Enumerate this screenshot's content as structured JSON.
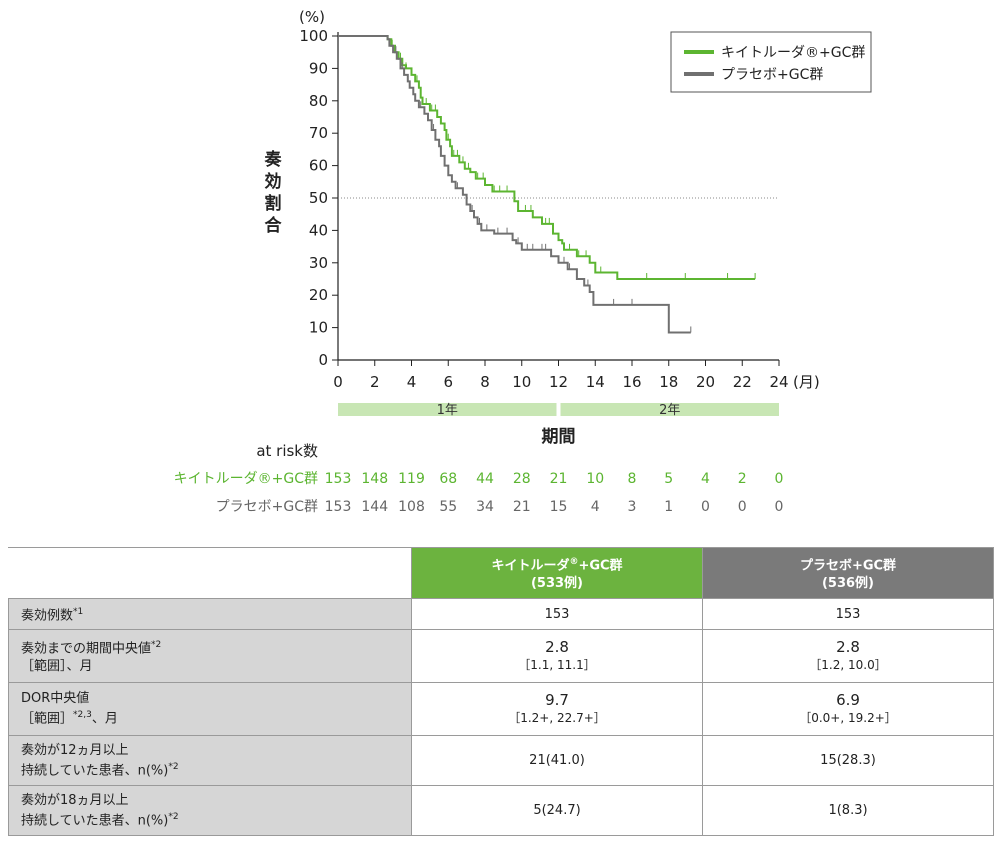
{
  "chart_data": {
    "type": "line",
    "subtype": "kaplan-meier",
    "y_unit": "(%)",
    "ylabel": "奏効割合",
    "xlabel": "期間",
    "x_unit": "(月)",
    "xlim": [
      0,
      24
    ],
    "ylim": [
      0,
      100
    ],
    "x_ticks": [
      0,
      2,
      4,
      6,
      8,
      10,
      12,
      14,
      16,
      18,
      20,
      22,
      24
    ],
    "y_ticks": [
      0,
      10,
      20,
      30,
      40,
      50,
      60,
      70,
      80,
      90,
      100
    ],
    "reference_line_y": 50,
    "legend_position": "top-right",
    "year_bands": [
      {
        "label": "1年",
        "from": 0,
        "to": 12
      },
      {
        "label": "2年",
        "from": 12,
        "to": 24
      }
    ],
    "series": [
      {
        "name": "キイトルーダ®+GC群",
        "color": "#5cb531",
        "points": [
          [
            0,
            100
          ],
          [
            2.7,
            100
          ],
          [
            2.7,
            99
          ],
          [
            2.9,
            99
          ],
          [
            2.9,
            97
          ],
          [
            3.1,
            97
          ],
          [
            3.1,
            95
          ],
          [
            3.3,
            95
          ],
          [
            3.3,
            93
          ],
          [
            3.5,
            93
          ],
          [
            3.5,
            91
          ],
          [
            3.7,
            91
          ],
          [
            3.7,
            90
          ],
          [
            4.0,
            90
          ],
          [
            4.0,
            88
          ],
          [
            4.2,
            88
          ],
          [
            4.2,
            86
          ],
          [
            4.4,
            86
          ],
          [
            4.4,
            84
          ],
          [
            4.5,
            84
          ],
          [
            4.5,
            81
          ],
          [
            4.6,
            81
          ],
          [
            4.6,
            79
          ],
          [
            5.0,
            79
          ],
          [
            5.0,
            77
          ],
          [
            5.4,
            77
          ],
          [
            5.4,
            75
          ],
          [
            5.6,
            75
          ],
          [
            5.6,
            73
          ],
          [
            5.8,
            73
          ],
          [
            5.8,
            71
          ],
          [
            5.9,
            71
          ],
          [
            5.9,
            68
          ],
          [
            6.1,
            68
          ],
          [
            6.1,
            66
          ],
          [
            6.2,
            66
          ],
          [
            6.2,
            63
          ],
          [
            6.6,
            63
          ],
          [
            6.6,
            61
          ],
          [
            6.9,
            61
          ],
          [
            6.9,
            59
          ],
          [
            7.2,
            59
          ],
          [
            7.2,
            58
          ],
          [
            7.5,
            58
          ],
          [
            7.5,
            56
          ],
          [
            8.0,
            56
          ],
          [
            8.0,
            54
          ],
          [
            8.4,
            54
          ],
          [
            8.4,
            52
          ],
          [
            9.6,
            52
          ],
          [
            9.6,
            49
          ],
          [
            9.8,
            49
          ],
          [
            9.8,
            46
          ],
          [
            10.6,
            46
          ],
          [
            10.6,
            44
          ],
          [
            11.1,
            44
          ],
          [
            11.1,
            42
          ],
          [
            11.7,
            42
          ],
          [
            11.7,
            39
          ],
          [
            12.0,
            39
          ],
          [
            12.0,
            37
          ],
          [
            12.2,
            37
          ],
          [
            12.2,
            36
          ],
          [
            12.3,
            36
          ],
          [
            12.3,
            34
          ],
          [
            13.0,
            34
          ],
          [
            13.0,
            32
          ],
          [
            13.7,
            32
          ],
          [
            13.7,
            30
          ],
          [
            14.0,
            30
          ],
          [
            14.0,
            27
          ],
          [
            15.2,
            27
          ],
          [
            15.2,
            25
          ],
          [
            22.7,
            25
          ]
        ],
        "censor_x": [
          2.95,
          3.1,
          3.4,
          3.7,
          4.0,
          4.3,
          4.6,
          4.8,
          5.1,
          5.3,
          5.6,
          6.0,
          6.3,
          6.5,
          6.8,
          7.1,
          7.6,
          7.9,
          8.5,
          8.8,
          9.2,
          10.2,
          10.5,
          11.3,
          11.5,
          12.6,
          13.1,
          13.5,
          14.3,
          16.8,
          18.9,
          21.2,
          22.7
        ]
      },
      {
        "name": "プラセボ+GC群",
        "color": "#707070",
        "points": [
          [
            0,
            100
          ],
          [
            2.7,
            100
          ],
          [
            2.7,
            99
          ],
          [
            2.8,
            99
          ],
          [
            2.8,
            97
          ],
          [
            3.0,
            97
          ],
          [
            3.0,
            95
          ],
          [
            3.2,
            95
          ],
          [
            3.2,
            93
          ],
          [
            3.4,
            93
          ],
          [
            3.4,
            90
          ],
          [
            3.6,
            90
          ],
          [
            3.6,
            88
          ],
          [
            3.8,
            88
          ],
          [
            3.8,
            86
          ],
          [
            3.9,
            86
          ],
          [
            3.9,
            84
          ],
          [
            4.1,
            84
          ],
          [
            4.1,
            82
          ],
          [
            4.2,
            82
          ],
          [
            4.2,
            80
          ],
          [
            4.4,
            80
          ],
          [
            4.4,
            78
          ],
          [
            4.7,
            78
          ],
          [
            4.7,
            76
          ],
          [
            4.9,
            76
          ],
          [
            4.9,
            74
          ],
          [
            5.1,
            74
          ],
          [
            5.1,
            71
          ],
          [
            5.3,
            71
          ],
          [
            5.3,
            68
          ],
          [
            5.5,
            68
          ],
          [
            5.5,
            66
          ],
          [
            5.6,
            66
          ],
          [
            5.6,
            63
          ],
          [
            5.8,
            63
          ],
          [
            5.8,
            60
          ],
          [
            6.0,
            60
          ],
          [
            6.0,
            57
          ],
          [
            6.2,
            57
          ],
          [
            6.2,
            55
          ],
          [
            6.4,
            55
          ],
          [
            6.4,
            53
          ],
          [
            6.8,
            53
          ],
          [
            6.8,
            51
          ],
          [
            7.0,
            51
          ],
          [
            7.0,
            48
          ],
          [
            7.2,
            48
          ],
          [
            7.2,
            46
          ],
          [
            7.4,
            46
          ],
          [
            7.4,
            44
          ],
          [
            7.6,
            44
          ],
          [
            7.6,
            42
          ],
          [
            7.8,
            42
          ],
          [
            7.8,
            40
          ],
          [
            8.5,
            40
          ],
          [
            8.5,
            39
          ],
          [
            9.5,
            39
          ],
          [
            9.5,
            37
          ],
          [
            9.7,
            37
          ],
          [
            9.7,
            36
          ],
          [
            10.0,
            36
          ],
          [
            10.0,
            34
          ],
          [
            11.6,
            34
          ],
          [
            11.6,
            32
          ],
          [
            12.0,
            32
          ],
          [
            12.0,
            30
          ],
          [
            12.5,
            30
          ],
          [
            12.5,
            28
          ],
          [
            13.0,
            28
          ],
          [
            13.0,
            25
          ],
          [
            13.4,
            25
          ],
          [
            13.4,
            23
          ],
          [
            13.7,
            23
          ],
          [
            13.7,
            21
          ],
          [
            13.9,
            21
          ],
          [
            13.9,
            17
          ],
          [
            18.0,
            17
          ],
          [
            18.0,
            8.5
          ],
          [
            19.2,
            8.5
          ]
        ],
        "censor_x": [
          3.15,
          3.5,
          4.5,
          5.2,
          6.5,
          7.3,
          7.7,
          8.1,
          8.7,
          9.2,
          9.8,
          10.3,
          10.6,
          11.1,
          11.3,
          12.3,
          12.6,
          13.4,
          13.6,
          15.0,
          16.0,
          19.2
        ]
      }
    ],
    "at_risk": {
      "title": "at risk数",
      "times": [
        0,
        2,
        4,
        6,
        8,
        10,
        12,
        14,
        16,
        18,
        20,
        22,
        24
      ],
      "rows": [
        {
          "name": "キイトルーダ®+GC群",
          "values": [
            "153",
            "148",
            "119",
            "68",
            "44",
            "28",
            "21",
            "10",
            "8",
            "5",
            "4",
            "2",
            "0"
          ]
        },
        {
          "name": "プラセボ+GC群",
          "values": [
            "153",
            "144",
            "108",
            "55",
            "34",
            "21",
            "15",
            "4",
            "3",
            "1",
            "0",
            "0",
            "0"
          ]
        }
      ]
    }
  },
  "colors": {
    "keytruda": "#5cb531",
    "placebo": "#707070",
    "band": "#c8e6b4",
    "label_bg": "#d6d6d6",
    "header_green": "#6cb33f",
    "header_gray": "#7a7a7a"
  },
  "table": {
    "headers": [
      {
        "name": "キイトルーダ",
        "sup": "®",
        "suffix": "+GC群",
        "n": "(533例)"
      },
      {
        "name": "プラセボ+GC群",
        "sup": "",
        "suffix": "",
        "n": "(536例)"
      }
    ],
    "rows": [
      {
        "label": "奏効例数",
        "label_sup": "*1",
        "label2": "",
        "label2_sup": "",
        "label2_tail": "",
        "k_main": "153",
        "k_sub": "",
        "p_main": "153",
        "p_sub": "",
        "large": false
      },
      {
        "label": "奏効までの期間中央値",
        "label_sup": "*2",
        "label2": "［範囲］、月",
        "label2_sup": "",
        "label2_tail": "",
        "k_main": "2.8",
        "k_sub": "［1.1, 11.1］",
        "p_main": "2.8",
        "p_sub": "［1.2, 10.0］",
        "large": true
      },
      {
        "label": "DOR中央値",
        "label_sup": "",
        "label2": "［範囲］",
        "label2_sup": "*2,3",
        "label2_tail": "、月",
        "k_main": "9.7",
        "k_sub": "［1.2+, 22.7+］",
        "p_main": "6.9",
        "p_sub": "［0.0+, 19.2+］",
        "large": true
      },
      {
        "label": "奏効が12ヵ月以上",
        "label_sup": "",
        "label2": "持続していた患者、n(%)",
        "label2_sup": "*2",
        "label2_tail": "",
        "k_main": "21(41.0)",
        "k_sub": "",
        "p_main": "15(28.3)",
        "p_sub": "",
        "large": false
      },
      {
        "label": "奏効が18ヵ月以上",
        "label_sup": "",
        "label2": "持続していた患者、n(%)",
        "label2_sup": "*2",
        "label2_tail": "",
        "k_main": "5(24.7)",
        "k_sub": "",
        "p_main": "1(8.3)",
        "p_sub": "",
        "large": false
      }
    ]
  }
}
